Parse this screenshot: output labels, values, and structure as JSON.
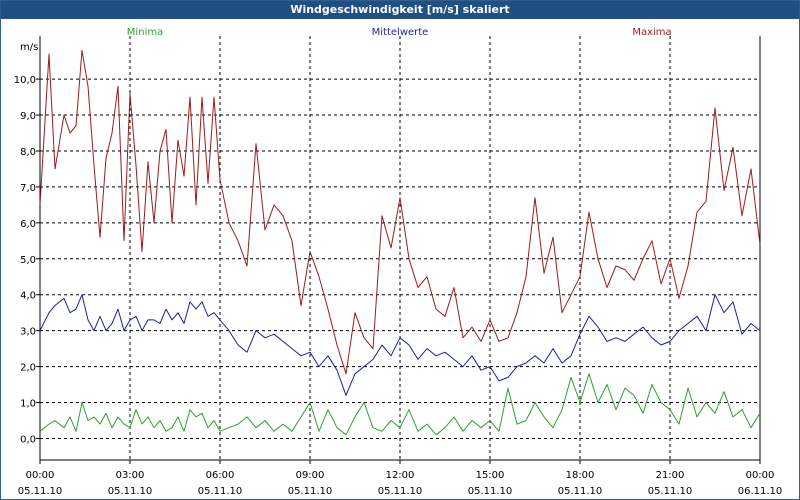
{
  "window": {
    "title": "Windgeschwindigkeit [m/s] skaliert"
  },
  "colors": {
    "minima": "#2ca02c",
    "mittelwerte": "#1f1fa0",
    "maxima": "#9b1b1b",
    "grid": "#000000",
    "titlebar": "#1f4f83"
  },
  "chart_data": {
    "type": "line",
    "title": "Windgeschwindigkeit [m/s] skaliert",
    "ylabel": "m/s",
    "ylim": [
      -0.6,
      11.2
    ],
    "yticks": [
      0,
      1,
      2,
      3,
      4,
      5,
      6,
      7,
      8,
      9,
      10
    ],
    "yticklabels": [
      "0,0",
      "1,0",
      "2,0",
      "3,0",
      "4,0",
      "5,0",
      "6,0",
      "7,0",
      "8,0",
      "9,0",
      "10,0"
    ],
    "xlim": [
      0,
      24
    ],
    "xticks": [
      0,
      3,
      6,
      9,
      12,
      15,
      18,
      21,
      24
    ],
    "xticklabels": [
      [
        "00:00",
        "05.11.10"
      ],
      [
        "03:00",
        "05.11.10"
      ],
      [
        "06:00",
        "05.11.10"
      ],
      [
        "09:00",
        "05.11.10"
      ],
      [
        "12:00",
        "05.11.10"
      ],
      [
        "15:00",
        "05.11.10"
      ],
      [
        "18:00",
        "05.11.10"
      ],
      [
        "21:00",
        "05.11.10"
      ],
      [
        "00:00",
        "06.11.10"
      ]
    ],
    "grid": true,
    "legend": "top",
    "series": [
      {
        "name": "Maxima",
        "x": [
          0,
          0.3,
          0.5,
          0.8,
          1.0,
          1.2,
          1.4,
          1.6,
          1.8,
          2.0,
          2.2,
          2.4,
          2.6,
          2.8,
          3.0,
          3.2,
          3.4,
          3.6,
          3.8,
          4.0,
          4.2,
          4.4,
          4.6,
          4.8,
          5.0,
          5.2,
          5.4,
          5.6,
          5.8,
          6.0,
          6.3,
          6.6,
          6.9,
          7.2,
          7.5,
          7.8,
          8.1,
          8.4,
          8.7,
          9.0,
          9.3,
          9.6,
          9.9,
          10.2,
          10.5,
          10.8,
          11.1,
          11.4,
          11.7,
          12.0,
          12.3,
          12.6,
          12.9,
          13.2,
          13.5,
          13.8,
          14.1,
          14.4,
          14.7,
          15.0,
          15.3,
          15.6,
          15.9,
          16.2,
          16.5,
          16.8,
          17.1,
          17.4,
          17.7,
          18.0,
          18.3,
          18.6,
          18.9,
          19.2,
          19.5,
          19.8,
          20.1,
          20.4,
          20.7,
          21.0,
          21.3,
          21.6,
          21.9,
          22.2,
          22.5,
          22.8,
          23.1,
          23.4,
          23.7,
          24.0
        ],
        "values": [
          6.5,
          10.7,
          7.5,
          9.0,
          8.5,
          8.7,
          10.8,
          9.8,
          7.6,
          5.6,
          7.8,
          8.5,
          9.8,
          5.5,
          9.6,
          7.6,
          5.2,
          7.7,
          6.0,
          8.0,
          8.6,
          6.0,
          8.3,
          7.3,
          9.5,
          6.5,
          9.5,
          7.1,
          9.5,
          7.2,
          6.0,
          5.5,
          4.8,
          8.2,
          5.8,
          6.5,
          6.2,
          5.5,
          3.7,
          5.2,
          4.5,
          3.6,
          2.6,
          1.8,
          3.5,
          2.8,
          2.5,
          6.2,
          5.3,
          6.7,
          5.0,
          4.2,
          4.5,
          3.6,
          3.4,
          4.2,
          2.8,
          3.1,
          2.7,
          3.3,
          2.7,
          2.8,
          3.5,
          4.5,
          6.7,
          4.6,
          5.6,
          3.5,
          4.0,
          4.5,
          6.3,
          5.0,
          4.2,
          4.8,
          4.7,
          4.4,
          5.0,
          5.5,
          4.3,
          5.0,
          3.9,
          4.8,
          6.3,
          6.6,
          9.2,
          6.9,
          8.1,
          6.2,
          7.5,
          5.4
        ]
      },
      {
        "name": "Mittelwerte",
        "x": [
          0,
          0.3,
          0.5,
          0.8,
          1.0,
          1.2,
          1.4,
          1.6,
          1.8,
          2.0,
          2.2,
          2.4,
          2.6,
          2.8,
          3.0,
          3.2,
          3.4,
          3.6,
          3.8,
          4.0,
          4.2,
          4.4,
          4.6,
          4.8,
          5.0,
          5.2,
          5.4,
          5.6,
          5.8,
          6.0,
          6.3,
          6.6,
          6.9,
          7.2,
          7.5,
          7.8,
          8.1,
          8.4,
          8.7,
          9.0,
          9.3,
          9.6,
          9.9,
          10.2,
          10.5,
          10.8,
          11.1,
          11.4,
          11.7,
          12.0,
          12.3,
          12.6,
          12.9,
          13.2,
          13.5,
          13.8,
          14.1,
          14.4,
          14.7,
          15.0,
          15.3,
          15.6,
          15.9,
          16.2,
          16.5,
          16.8,
          17.1,
          17.4,
          17.7,
          18.0,
          18.3,
          18.6,
          18.9,
          19.2,
          19.5,
          19.8,
          20.1,
          20.4,
          20.7,
          21.0,
          21.3,
          21.6,
          21.9,
          22.2,
          22.5,
          22.8,
          23.1,
          23.4,
          23.7,
          24.0
        ],
        "values": [
          3.0,
          3.5,
          3.7,
          3.9,
          3.5,
          3.6,
          4.0,
          3.3,
          3.0,
          3.4,
          3.0,
          3.2,
          3.6,
          3.0,
          3.3,
          3.4,
          3.0,
          3.3,
          3.3,
          3.2,
          3.6,
          3.3,
          3.5,
          3.2,
          3.8,
          3.6,
          3.8,
          3.4,
          3.5,
          3.3,
          3.0,
          2.6,
          2.4,
          3.0,
          2.8,
          2.9,
          2.7,
          2.5,
          2.3,
          2.4,
          2.0,
          2.3,
          1.9,
          1.2,
          1.8,
          2.0,
          2.2,
          2.6,
          2.3,
          2.8,
          2.6,
          2.2,
          2.5,
          2.3,
          2.4,
          2.2,
          2.0,
          2.3,
          1.9,
          2.0,
          1.6,
          1.7,
          2.0,
          2.1,
          2.3,
          2.1,
          2.5,
          2.1,
          2.3,
          2.9,
          3.4,
          3.1,
          2.7,
          2.8,
          2.7,
          2.9,
          3.1,
          2.8,
          2.6,
          2.7,
          3.0,
          3.2,
          3.4,
          3.0,
          4.0,
          3.5,
          3.8,
          2.9,
          3.2,
          3.0
        ]
      },
      {
        "name": "Minima",
        "x": [
          0,
          0.3,
          0.5,
          0.8,
          1.0,
          1.2,
          1.4,
          1.6,
          1.8,
          2.0,
          2.2,
          2.4,
          2.6,
          2.8,
          3.0,
          3.2,
          3.4,
          3.6,
          3.8,
          4.0,
          4.2,
          4.4,
          4.6,
          4.8,
          5.0,
          5.2,
          5.4,
          5.6,
          5.8,
          6.0,
          6.3,
          6.6,
          6.9,
          7.2,
          7.5,
          7.8,
          8.1,
          8.4,
          8.7,
          9.0,
          9.3,
          9.6,
          9.9,
          10.2,
          10.5,
          10.8,
          11.1,
          11.4,
          11.7,
          12.0,
          12.3,
          12.6,
          12.9,
          13.2,
          13.5,
          13.8,
          14.1,
          14.4,
          14.7,
          15.0,
          15.3,
          15.6,
          15.9,
          16.2,
          16.5,
          16.8,
          17.1,
          17.4,
          17.7,
          18.0,
          18.3,
          18.6,
          18.9,
          19.2,
          19.5,
          19.8,
          20.1,
          20.4,
          20.7,
          21.0,
          21.3,
          21.6,
          21.9,
          22.2,
          22.5,
          22.8,
          23.1,
          23.4,
          23.7,
          24.0
        ],
        "values": [
          0.2,
          0.4,
          0.5,
          0.3,
          0.6,
          0.2,
          1.0,
          0.5,
          0.6,
          0.4,
          0.7,
          0.3,
          0.6,
          0.4,
          0.3,
          0.8,
          0.4,
          0.6,
          0.3,
          0.5,
          0.2,
          0.3,
          0.6,
          0.2,
          0.8,
          0.6,
          0.7,
          0.3,
          0.5,
          0.2,
          0.3,
          0.4,
          0.6,
          0.3,
          0.5,
          0.2,
          0.4,
          0.2,
          0.6,
          1.0,
          0.2,
          0.8,
          0.3,
          0.1,
          0.6,
          1.0,
          0.3,
          0.2,
          0.5,
          0.3,
          0.8,
          0.2,
          0.4,
          0.1,
          0.3,
          0.6,
          0.2,
          0.5,
          0.3,
          0.5,
          0.2,
          1.4,
          0.4,
          0.5,
          1.0,
          0.6,
          0.3,
          0.8,
          1.7,
          1.0,
          1.8,
          1.0,
          1.5,
          0.8,
          1.4,
          1.2,
          0.7,
          1.5,
          1.0,
          0.8,
          0.4,
          1.4,
          0.6,
          1.0,
          0.7,
          1.3,
          0.6,
          0.8,
          0.3,
          0.7
        ]
      }
    ]
  }
}
